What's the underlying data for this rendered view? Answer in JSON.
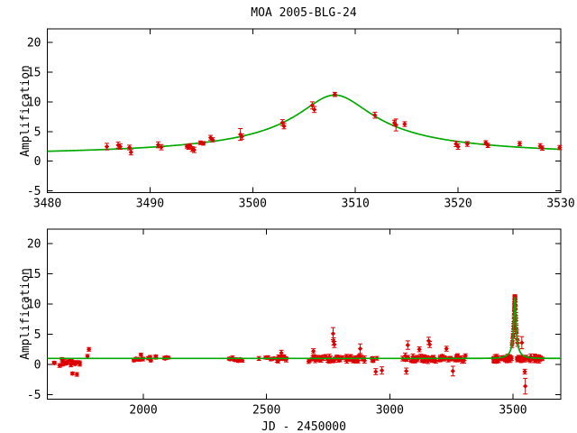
{
  "title": "MOA 2005-BLG-24",
  "colors": {
    "background": "#ffffff",
    "frame": "#000000",
    "data": "#dd0000",
    "model": "#00aa00"
  },
  "chart_data": [
    {
      "type": "scatter",
      "panel": "top",
      "title": "MOA 2005-BLG-24",
      "xlabel": "",
      "ylabel": "Amplification",
      "xlim": [
        3480,
        3530
      ],
      "ylim": [
        -5.3,
        22.3
      ],
      "xticks": [
        3480,
        3490,
        3500,
        3510,
        3520,
        3530
      ],
      "yticks": [
        -5,
        0,
        5,
        10,
        15,
        20
      ],
      "grid": false,
      "legend": "none",
      "model": {
        "type": "paczynski",
        "t0": 3508,
        "u0": 0.09,
        "tE": 40
      },
      "points": [
        [
          3485.8,
          2.45,
          0.55
        ],
        [
          3486.9,
          2.7,
          0.5
        ],
        [
          3487.1,
          2.45,
          0.45
        ],
        [
          3488.0,
          2.3,
          0.4
        ],
        [
          3488.15,
          1.5,
          0.45
        ],
        [
          3490.8,
          2.75,
          0.5
        ],
        [
          3491.1,
          2.35,
          0.45
        ],
        [
          3493.6,
          2.5,
          0.3
        ],
        [
          3493.75,
          2.3,
          0.3
        ],
        [
          3493.9,
          2.6,
          0.35
        ],
        [
          3494.1,
          2.05,
          0.4
        ],
        [
          3494.3,
          1.9,
          0.45
        ],
        [
          3494.9,
          3.1,
          0.3
        ],
        [
          3495.2,
          3.0,
          0.3
        ],
        [
          3495.9,
          3.95,
          0.4
        ],
        [
          3496.1,
          3.6,
          0.35
        ],
        [
          3498.8,
          4.5,
          1.0
        ],
        [
          3498.95,
          4.15,
          0.45
        ],
        [
          3502.9,
          6.5,
          0.5
        ],
        [
          3503.05,
          5.9,
          0.45
        ],
        [
          3505.8,
          9.4,
          0.6
        ],
        [
          3506.0,
          8.7,
          0.5
        ],
        [
          3508.0,
          11.25,
          0.35
        ],
        [
          3511.9,
          7.75,
          0.5
        ],
        [
          3513.8,
          6.45,
          0.45
        ],
        [
          3513.95,
          6.1,
          1.0
        ],
        [
          3514.8,
          6.25,
          0.4
        ],
        [
          3519.8,
          2.9,
          0.45
        ],
        [
          3520.0,
          2.45,
          0.45
        ],
        [
          3520.9,
          2.9,
          0.4
        ],
        [
          3522.7,
          3.1,
          0.35
        ],
        [
          3522.9,
          2.65,
          0.35
        ],
        [
          3526.0,
          2.95,
          0.35
        ],
        [
          3528.0,
          2.55,
          0.4
        ],
        [
          3528.2,
          2.2,
          0.35
        ],
        [
          3529.9,
          2.3,
          0.35
        ]
      ]
    },
    {
      "type": "scatter",
      "panel": "bottom",
      "title": "",
      "xlabel": "JD - 2450000",
      "ylabel": "Amplification",
      "xlim": [
        1610,
        3694
      ],
      "ylim": [
        -5.75,
        22.4
      ],
      "xticks": [
        2000,
        2500,
        3000,
        3500
      ],
      "yticks": [
        -5,
        0,
        5,
        10,
        15,
        20
      ],
      "grid": false,
      "legend": "none",
      "model": {
        "type": "paczynski",
        "t0": 3508,
        "u0": 0.09,
        "tE": 40
      },
      "points": [
        [
          1712,
          -1.5,
          0.25
        ],
        [
          1730,
          -1.65,
          0.3
        ],
        [
          1773,
          1.35,
          0.3
        ],
        [
          1779,
          2.5,
          0.3
        ],
        [
          1990,
          1.6,
          0.25
        ],
        [
          2560,
          1.9,
          0.45
        ],
        [
          2690,
          2.2,
          0.4
        ],
        [
          2770,
          5.1,
          1.0
        ],
        [
          2772,
          3.8,
          0.6
        ],
        [
          2775,
          3.3,
          0.5
        ],
        [
          2880,
          2.6,
          0.8
        ],
        [
          2943,
          -1.2,
          0.5
        ],
        [
          2968,
          -1.0,
          0.6
        ],
        [
          3067,
          -1.1,
          0.5
        ],
        [
          3073,
          3.2,
          0.7
        ],
        [
          3120,
          2.5,
          0.4
        ],
        [
          3158,
          3.9,
          0.6
        ],
        [
          3162,
          3.3,
          0.5
        ],
        [
          3230,
          2.6,
          0.4
        ],
        [
          3256,
          -1.1,
          0.8
        ],
        [
          3496,
          3.2,
          0.4
        ],
        [
          3498,
          3.9,
          0.45
        ],
        [
          3500,
          4.7,
          0.4
        ],
        [
          3501,
          5.0,
          0.5
        ],
        [
          3502,
          5.9,
          0.45
        ],
        [
          3502.8,
          6.3,
          0.5
        ],
        [
          3503.5,
          7.1,
          0.5
        ],
        [
          3504.2,
          7.6,
          0.5
        ],
        [
          3504.8,
          8.4,
          0.55
        ],
        [
          3505.3,
          8.8,
          0.5
        ],
        [
          3505.8,
          9.6,
          0.5
        ],
        [
          3506.2,
          9.9,
          0.5
        ],
        [
          3506.6,
          10.3,
          0.5
        ],
        [
          3507.0,
          10.8,
          0.45
        ],
        [
          3507.4,
          11.0,
          0.4
        ],
        [
          3507.9,
          11.15,
          0.4
        ],
        [
          3508.3,
          11.1,
          0.4
        ],
        [
          3508.8,
          10.8,
          0.45
        ],
        [
          3509.3,
          10.4,
          0.45
        ],
        [
          3509.9,
          9.8,
          0.5
        ],
        [
          3510.6,
          9.1,
          0.5
        ],
        [
          3511.4,
          8.1,
          0.5
        ],
        [
          3512.3,
          7.25,
          0.5
        ],
        [
          3513.5,
          6.0,
          0.5
        ],
        [
          3515,
          5.2,
          0.5
        ],
        [
          3517,
          4.2,
          0.5
        ],
        [
          3519,
          3.5,
          0.5
        ],
        [
          3536,
          3.6,
          1.0
        ],
        [
          3548,
          -1.2,
          0.4
        ],
        [
          3550,
          -3.6,
          1.3
        ]
      ],
      "clusters": [
        {
          "x_range": [
            1629,
            1758
          ],
          "n": 20,
          "amp_mean": 0.35,
          "amp_spread": 0.6,
          "err_range": [
            0.2,
            0.35
          ]
        },
        {
          "x_range": [
            1958,
            2032
          ],
          "n": 9,
          "amp_mean": 0.95,
          "amp_spread": 0.35,
          "err_range": [
            0.15,
            0.3
          ]
        },
        {
          "x_range": [
            2045,
            2112
          ],
          "n": 7,
          "amp_mean": 1.1,
          "amp_spread": 0.3,
          "err_range": [
            0.15,
            0.3
          ]
        },
        {
          "x_range": [
            2345,
            2435
          ],
          "n": 11,
          "amp_mean": 0.8,
          "amp_spread": 0.45,
          "err_range": [
            0.15,
            0.3
          ]
        },
        {
          "x_range": [
            2468,
            2588
          ],
          "n": 16,
          "amp_mean": 0.95,
          "amp_spread": 0.45,
          "err_range": [
            0.2,
            0.4
          ]
        },
        {
          "x_range": [
            2670,
            2952
          ],
          "n": 62,
          "amp_mean": 0.9,
          "amp_spread": 0.55,
          "err_range": [
            0.2,
            0.45
          ]
        },
        {
          "x_range": [
            3052,
            3312
          ],
          "n": 72,
          "amp_mean": 0.95,
          "amp_spread": 0.55,
          "err_range": [
            0.2,
            0.45
          ]
        },
        {
          "x_range": [
            3420,
            3495
          ],
          "n": 32,
          "amp_mean": 0.95,
          "amp_spread": 0.5,
          "err_range": [
            0.2,
            0.45
          ]
        },
        {
          "x_range": [
            3512,
            3620
          ],
          "n": 40,
          "amp_mean": 1.0,
          "amp_spread": 0.5,
          "err_range": [
            0.2,
            0.45
          ]
        }
      ]
    }
  ]
}
